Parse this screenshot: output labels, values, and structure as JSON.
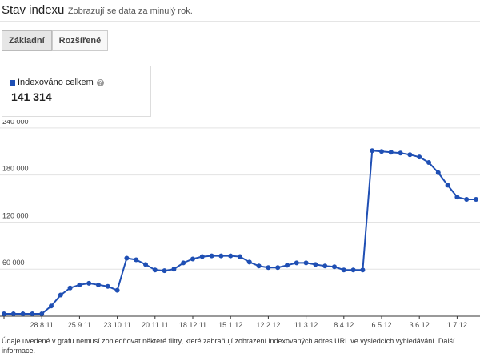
{
  "header": {
    "title": "Stav indexu",
    "subtitle": "Zobrazují se data za minulý rok."
  },
  "tabs": [
    "Základní",
    "Rozšířené"
  ],
  "summary": {
    "total": "141 314"
  },
  "chart_data": {
    "type": "line",
    "categories": [
      "...",
      null,
      null,
      null,
      "28.8.11",
      null,
      null,
      null,
      "25.9.11",
      null,
      null,
      null,
      "23.10.11",
      null,
      null,
      null,
      "20.11.11",
      null,
      null,
      null,
      "18.12.11",
      null,
      null,
      null,
      "15.1.12",
      null,
      null,
      null,
      "12.2.12",
      null,
      null,
      null,
      "11.3.12",
      null,
      null,
      null,
      "8.4.12",
      null,
      null,
      null,
      "6.5.12",
      null,
      null,
      null,
      "3.6.12",
      null,
      null,
      null,
      "1.7.12",
      null,
      null
    ],
    "series": [
      {
        "name": "Indexováno celkem",
        "color": "#1f4fb4",
        "values": [
          3000,
          3000,
          3000,
          3000,
          3000,
          13000,
          27000,
          36000,
          40000,
          42000,
          40000,
          38000,
          33000,
          74000,
          72000,
          66000,
          59000,
          58000,
          60000,
          68000,
          73000,
          76000,
          77000,
          77000,
          77000,
          76000,
          69000,
          64000,
          62000,
          62000,
          65000,
          68000,
          68000,
          66000,
          64000,
          63000,
          59000,
          59000,
          59000,
          211000,
          210000,
          209000,
          208000,
          206000,
          203000,
          196000,
          183000,
          167000,
          152000,
          149000,
          149000
        ]
      }
    ],
    "ylim": [
      0,
      245000
    ],
    "yticks": [
      {
        "value": 60000,
        "label": "60 000"
      },
      {
        "value": 120000,
        "label": "120 000"
      },
      {
        "value": 180000,
        "label": "180 000"
      },
      {
        "value": 240000,
        "label": "240 000"
      }
    ],
    "grid": true
  },
  "footer": {
    "note": "Údaje uvedené v grafu nemusí zohledňovat některé filtry, které zabraňují zobrazení indexovaných adres URL ve výsledcích vyhledávání.",
    "link": "Další informace."
  }
}
